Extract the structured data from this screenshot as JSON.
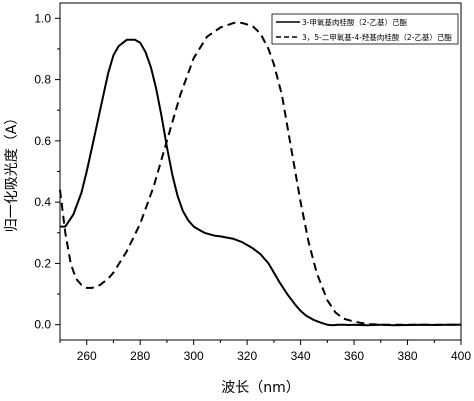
{
  "chart_data": {
    "type": "line",
    "xlabel": "波长（nm）",
    "ylabel": "归一化吸光度（A）",
    "xlim": [
      250,
      400
    ],
    "ylim": [
      -0.05,
      1.05
    ],
    "xticks": [
      260,
      280,
      300,
      320,
      340,
      360,
      380,
      400
    ],
    "xtick_labels": [
      "260",
      "280",
      "300",
      "320",
      "340",
      "360",
      "380",
      "400"
    ],
    "yticks": [
      0.0,
      0.2,
      0.4,
      0.6,
      0.8,
      1.0
    ],
    "ytick_labels": [
      "0.0",
      "0.2",
      "0.4",
      "0.6",
      "0.8",
      "1.0"
    ],
    "grid": false,
    "legend_position": "top-right",
    "series": [
      {
        "name": "3-甲氧基肉桂酸（2-乙基）己酯",
        "style": "solid",
        "color": "#000000",
        "x": [
          250,
          252,
          255,
          258,
          260,
          262,
          265,
          268,
          270,
          272,
          275,
          278,
          280,
          282,
          284,
          286,
          288,
          290,
          292,
          294,
          296,
          298,
          300,
          302,
          304,
          306,
          308,
          310,
          312,
          315,
          318,
          320,
          322,
          325,
          328,
          330,
          332,
          335,
          338,
          340,
          342,
          345,
          348,
          350,
          352,
          354,
          356,
          358,
          360,
          365,
          370,
          375,
          380,
          385,
          390,
          395,
          400
        ],
        "y": [
          0.32,
          0.32,
          0.36,
          0.43,
          0.5,
          0.58,
          0.7,
          0.82,
          0.88,
          0.91,
          0.93,
          0.93,
          0.92,
          0.89,
          0.84,
          0.77,
          0.68,
          0.58,
          0.49,
          0.42,
          0.37,
          0.34,
          0.32,
          0.31,
          0.3,
          0.295,
          0.29,
          0.288,
          0.285,
          0.28,
          0.27,
          0.26,
          0.25,
          0.23,
          0.2,
          0.17,
          0.14,
          0.1,
          0.065,
          0.045,
          0.03,
          0.015,
          0.005,
          0.0,
          -0.002,
          0.0,
          0.0,
          -0.001,
          0.0,
          -0.002,
          0.0,
          -0.002,
          -0.001,
          0.0,
          -0.001,
          0.0,
          0.0
        ]
      },
      {
        "name": "3，5-二甲氧基-4-羟基肉桂酸（2-乙基）己酯",
        "style": "dashed",
        "color": "#000000",
        "x": [
          250,
          252,
          254,
          256,
          258,
          260,
          262,
          265,
          268,
          270,
          275,
          280,
          285,
          290,
          295,
          300,
          305,
          310,
          315,
          318,
          320,
          322,
          325,
          328,
          330,
          333,
          336,
          340,
          343,
          346,
          350,
          353,
          356,
          360,
          363,
          366,
          370,
          375,
          380,
          385,
          390,
          395,
          400
        ],
        "y": [
          0.44,
          0.3,
          0.2,
          0.15,
          0.13,
          0.12,
          0.12,
          0.13,
          0.15,
          0.17,
          0.24,
          0.33,
          0.45,
          0.6,
          0.75,
          0.87,
          0.94,
          0.97,
          0.985,
          0.985,
          0.98,
          0.975,
          0.95,
          0.9,
          0.85,
          0.75,
          0.6,
          0.4,
          0.27,
          0.17,
          0.08,
          0.04,
          0.02,
          0.01,
          0.005,
          0.002,
          0.0,
          0.0,
          0.0,
          0.0,
          0.0,
          0.0,
          0.0
        ]
      }
    ]
  }
}
